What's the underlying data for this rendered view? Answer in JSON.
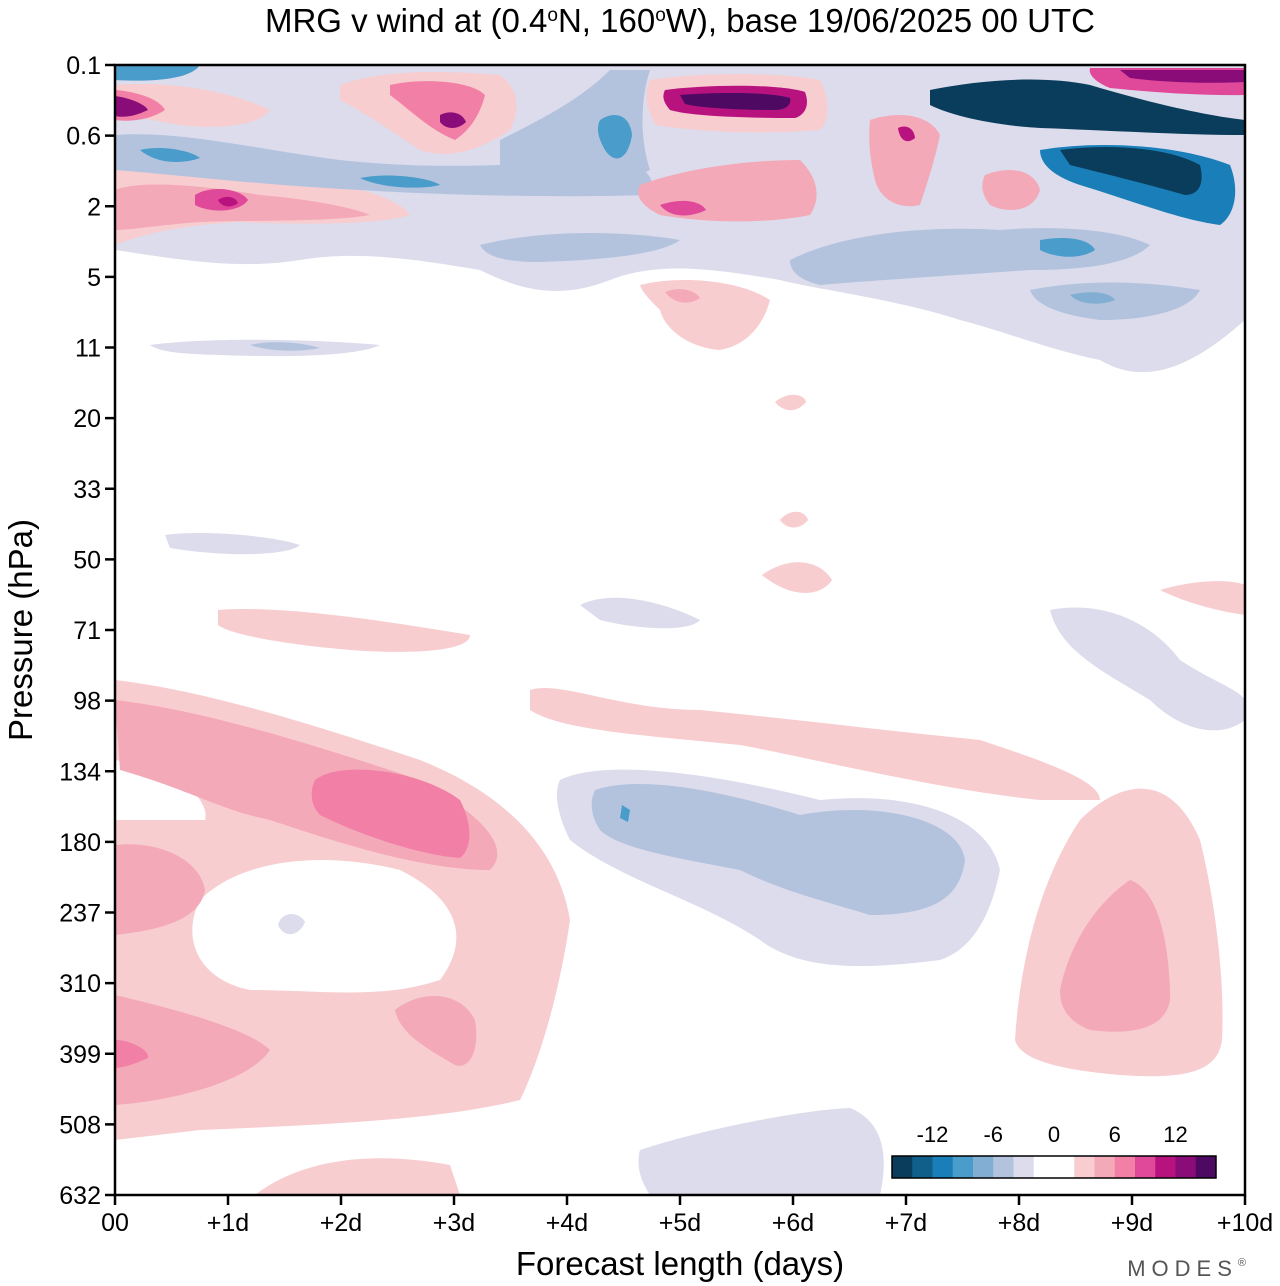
{
  "chart_data": {
    "type": "heatmap",
    "title": "MRG v wind at (0.4°N, 160°W),  base 19/06/2025  00 UTC",
    "title_parts": {
      "prefix": "MRG v wind at (0.4",
      "lat_suffix": "N, 160",
      "lon_suffix": "W),  base 19/06/2025  00 UTC",
      "degree": "o"
    },
    "xlabel": "Forecast length (days)",
    "ylabel": "Pressure (hPa)",
    "x_ticks": [
      "00",
      "+1d",
      "+2d",
      "+3d",
      "+4d",
      "+5d",
      "+6d",
      "+7d",
      "+8d",
      "+9d",
      "+10d"
    ],
    "y_ticks": [
      "0.1",
      "0.6",
      "2",
      "5",
      "11",
      "20",
      "33",
      "50",
      "71",
      "98",
      "134",
      "180",
      "237",
      "310",
      "399",
      "508",
      "632"
    ],
    "xlim": [
      0,
      10
    ],
    "y_scale": "categorical pressure levels, top = 0.1 hPa, bottom = 632 hPa",
    "colorbar": {
      "tick_labels": [
        "-12",
        "-6",
        "0",
        "6",
        "12"
      ],
      "colors": [
        "#0a3d5c",
        "#105f8a",
        "#1a7fb8",
        "#4a9ccb",
        "#83aed3",
        "#b3c3de",
        "#dcdcec",
        "#ffffff",
        "#ffffff",
        "#f8cdd0",
        "#f4a9b8",
        "#f17fa6",
        "#e0489a",
        "#b8127e",
        "#8a0c78",
        "#4e0a62"
      ]
    },
    "regions": [
      {
        "value": -3,
        "label": "upper-left light blue band",
        "x": [
          0.4,
          2.0
        ],
        "y_hpa": [
          5,
          11
        ]
      },
      {
        "value": 3,
        "label": "lower-left positive lobe",
        "x": [
          0,
          3.5
        ],
        "y_hpa": [
          98,
          399
        ]
      },
      {
        "value": 9,
        "label": "peak near +2.5d",
        "x": [
          1.8,
          3.2
        ],
        "y_hpa": [
          134,
          180
        ]
      },
      {
        "value": -5,
        "label": "negative lobe",
        "x": [
          4.0,
          7.8
        ],
        "y_hpa": [
          134,
          310
        ]
      },
      {
        "value": 5,
        "label": "positive lobe",
        "x": [
          8.0,
          9.7
        ],
        "y_hpa": [
          237,
          399
        ]
      },
      {
        "value": -14,
        "label": "stratosphere strong negative",
        "x": [
          7.5,
          10
        ],
        "y_hpa": [
          0.1,
          2
        ]
      },
      {
        "value": 14,
        "label": "stratosphere strong positive",
        "x": [
          9.0,
          10
        ],
        "y_hpa": [
          0.1,
          0.6
        ]
      }
    ],
    "grid": false,
    "legend": "colorbar bottom-right inside plot"
  },
  "branding": {
    "name": "MODES",
    "mark": "®"
  }
}
